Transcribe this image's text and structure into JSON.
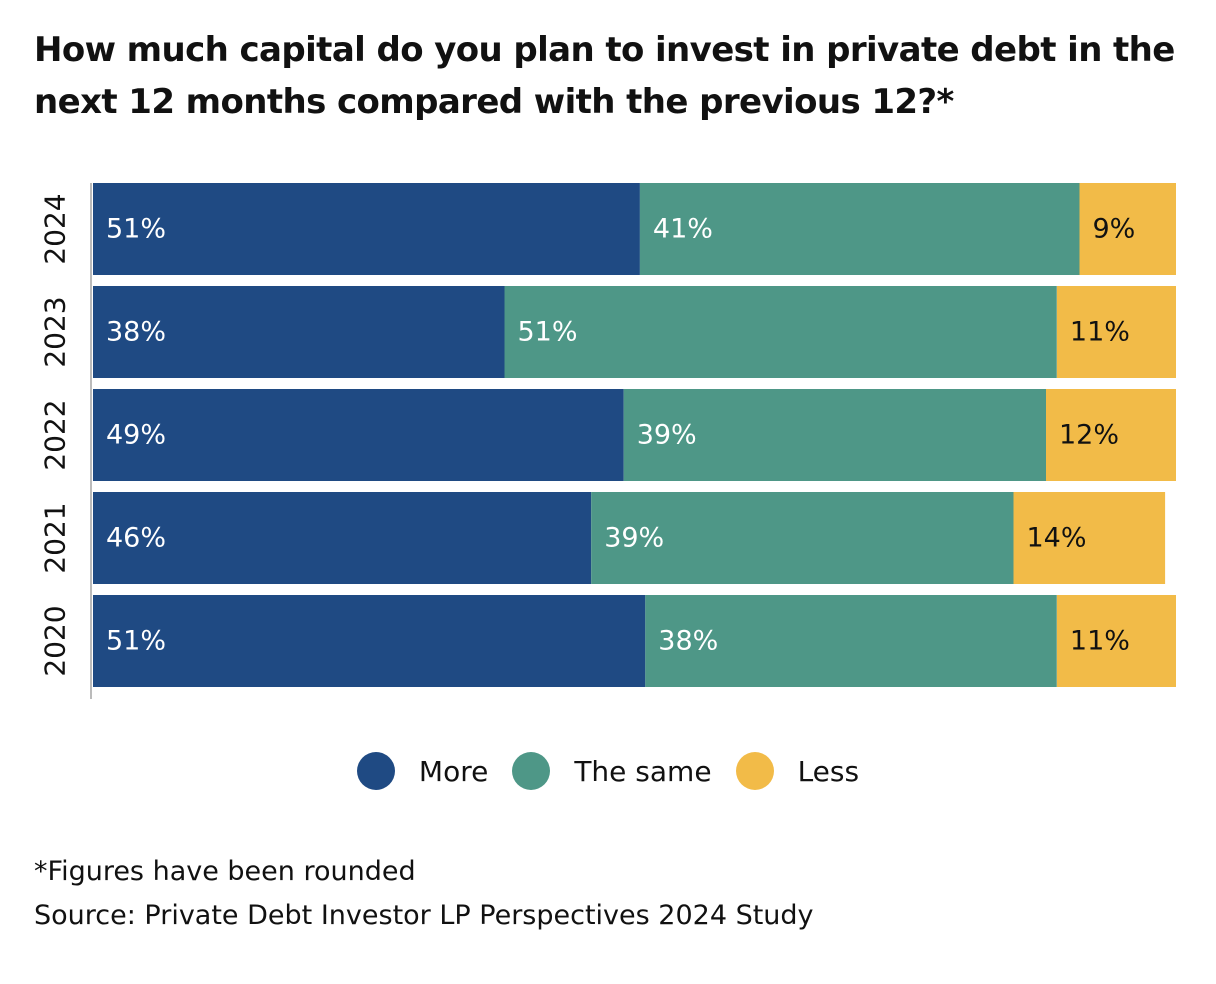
{
  "title": "How much capital do you plan to invest in private debt in the next 12 months compared with the previous 12?*",
  "footnote": "*Figures have been rounded",
  "source": "Source: Private Debt Investor LP Perspectives 2024 Study",
  "colors": {
    "more": "#1f4a83",
    "same": "#4e9787",
    "less": "#f2bb48",
    "axis": "#bbbbbb"
  },
  "chart_data": {
    "type": "bar",
    "orientation": "horizontal",
    "stacked": true,
    "categories": [
      "2024",
      "2023",
      "2022",
      "2021",
      "2020"
    ],
    "series": [
      {
        "name": "More",
        "values": [
          51,
          38,
          49,
          46,
          51
        ]
      },
      {
        "name": "The same",
        "values": [
          41,
          51,
          39,
          39,
          38
        ]
      },
      {
        "name": "Less",
        "values": [
          9,
          11,
          12,
          14,
          11
        ]
      }
    ],
    "value_labels": [
      [
        "51%",
        "41%",
        "9%"
      ],
      [
        "38%",
        "51%",
        "11%"
      ],
      [
        "49%",
        "39%",
        "12%"
      ],
      [
        "46%",
        "39%",
        "14%"
      ],
      [
        "51%",
        "38%",
        "11%"
      ]
    ],
    "xlim": [
      0,
      100
    ],
    "grid": false,
    "legend": "bottom"
  }
}
